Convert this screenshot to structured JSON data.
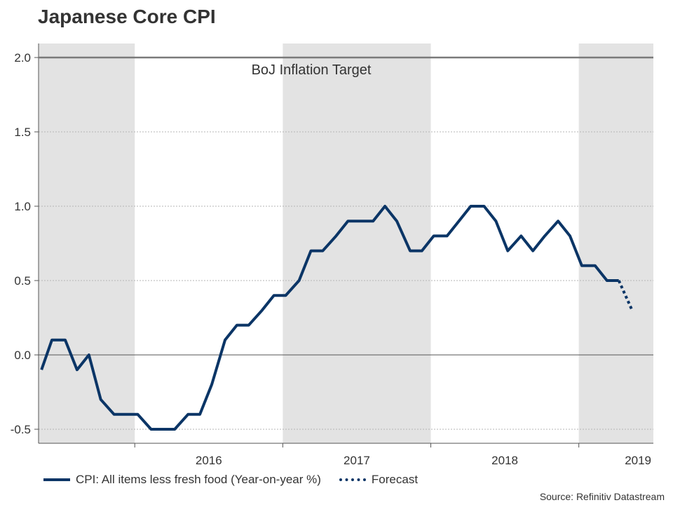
{
  "title": "Japanese Core CPI",
  "source": "Source: Refinitiv Datastream",
  "chart_data": {
    "type": "line",
    "title": "Japanese Core CPI",
    "xlabel": "",
    "ylabel": "",
    "ylim": [
      -0.5,
      2.0
    ],
    "yticks": [
      "2.0",
      "1.5",
      "1.0",
      "0.5",
      "0.0",
      "-0.5"
    ],
    "ytick_values": [
      2.0,
      1.5,
      1.0,
      0.5,
      0.0,
      -0.5
    ],
    "year_labels": [
      "2016",
      "2017",
      "2018",
      "2019"
    ],
    "year_centers": [
      2016.5,
      2017.5,
      2018.5,
      2019.4
    ],
    "shaded_years": [
      [
        2015.0,
        2016.0
      ],
      [
        2017.0,
        2018.0
      ],
      [
        2019.0,
        2020.0
      ]
    ],
    "xlim": [
      2015.35,
      2019.39
    ],
    "target": {
      "label": "BoJ Inflation Target",
      "value": 2.0
    },
    "series": [
      {
        "name": "CPI: All items less fresh food (Year-on-year %)",
        "style": "solid",
        "color": "#0b3566",
        "x": [
          2015.37,
          2015.44,
          2015.53,
          2015.61,
          2015.69,
          2015.77,
          2015.86,
          2015.94,
          2016.02,
          2016.11,
          2016.19,
          2016.27,
          2016.36,
          2016.44,
          2016.52,
          2016.61,
          2016.69,
          2016.77,
          2016.86,
          2016.94,
          2017.02,
          2017.11,
          2017.19,
          2017.27,
          2017.36,
          2017.44,
          2017.52,
          2017.61,
          2017.69,
          2017.77,
          2017.86,
          2017.94,
          2018.02,
          2018.11,
          2018.19,
          2018.27,
          2018.36,
          2018.44,
          2018.52,
          2018.61,
          2018.69,
          2018.77,
          2018.86,
          2018.94,
          2019.02,
          2019.11,
          2019.19,
          2019.27
        ],
        "values": [
          -0.1,
          0.1,
          0.1,
          -0.1,
          0.0,
          -0.3,
          -0.4,
          -0.4,
          -0.4,
          -0.5,
          -0.5,
          -0.5,
          -0.4,
          -0.4,
          -0.2,
          0.1,
          0.2,
          0.2,
          0.3,
          0.4,
          0.4,
          0.5,
          0.7,
          0.7,
          0.8,
          0.9,
          0.9,
          0.9,
          1.0,
          0.9,
          0.7,
          0.7,
          0.8,
          0.8,
          0.9,
          1.0,
          1.0,
          0.9,
          0.7,
          0.8,
          0.7,
          0.8,
          0.9,
          0.8,
          0.6,
          0.6,
          0.5,
          0.5
        ]
      },
      {
        "name": "Forecast",
        "style": "dotted",
        "color": "#0b3566",
        "x": [
          2019.27,
          2019.36
        ],
        "values": [
          0.5,
          0.3
        ]
      }
    ]
  }
}
